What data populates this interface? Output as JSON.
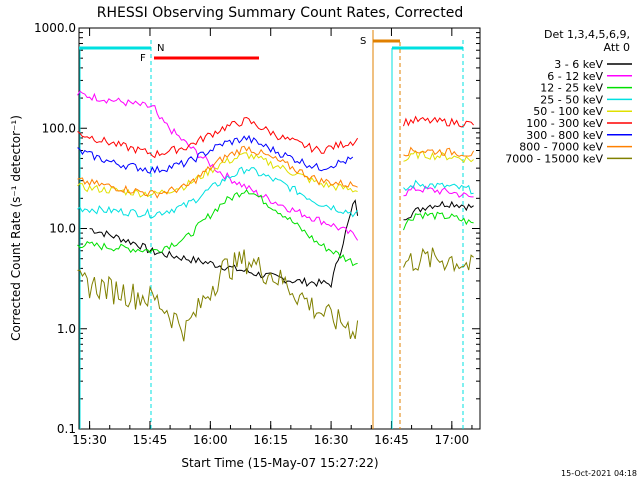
{
  "chart_data": {
    "type": "line",
    "title": "RHESSI Observing Summary Count Rates, Corrected",
    "xlabel": "Start Time (15-May-07 15:27:22)",
    "ylabel": "Corrected Count Rate (s⁻¹ detector⁻¹)",
    "yscale": "log",
    "ylim": [
      0.1,
      1000
    ],
    "xlim_minutes": [
      "15:27:22",
      "17:07"
    ],
    "x_ticks": [
      "15:30",
      "15:45",
      "16:00",
      "16:15",
      "16:30",
      "16:45",
      "17:00"
    ],
    "y_ticks": [
      "0.1",
      "1.0",
      "10.0",
      "100.0",
      "1000.0"
    ],
    "footer_date": "15-Oct-2021 04:18",
    "legend": {
      "header1": "Det 1,3,4,5,6,9,",
      "header2": "Att 0",
      "placement": "top-right-outside"
    },
    "flags": [
      {
        "label": "N",
        "color": "#00e0e0"
      },
      {
        "label": "F",
        "color": "#ff0000"
      },
      {
        "label": "S",
        "color": "#e08000"
      }
    ],
    "series": [
      {
        "name": "3 - 6 keV",
        "color": "#000000",
        "x": [
          15.5,
          15.7,
          15.75,
          15.77,
          16.0,
          16.2,
          16.35,
          16.5,
          16.6,
          16.62,
          16.7,
          16.8,
          16.9,
          17.0,
          17.1
        ],
        "y": [
          10,
          7,
          6,
          5.8,
          4.5,
          3.5,
          3,
          2.8,
          20,
          8,
          8,
          13,
          17,
          18,
          16
        ]
      },
      {
        "name": "6 - 12 keV",
        "color": "#ff00ff",
        "x": [
          15.45,
          15.77,
          15.78,
          15.9,
          16.05,
          16.2,
          16.35,
          16.5,
          16.62,
          16.75,
          16.85,
          17.0,
          17.1
        ],
        "y": [
          220,
          160,
          130,
          70,
          35,
          22,
          15,
          11,
          8,
          20,
          25,
          23,
          20
        ]
      },
      {
        "name": "12 - 25 keV",
        "color": "#00e000",
        "x": [
          15.45,
          15.6,
          15.77,
          15.9,
          16.05,
          16.15,
          16.3,
          16.45,
          16.6,
          16.75,
          16.85,
          17.0,
          17.1
        ],
        "y": [
          7,
          6.5,
          6,
          8,
          18,
          25,
          14,
          7,
          4.5,
          8,
          14,
          13,
          11
        ]
      },
      {
        "name": "25 - 50 keV",
        "color": "#00e0e0",
        "x": [
          15.45,
          15.6,
          15.77,
          15.9,
          16.05,
          16.15,
          16.3,
          16.45,
          16.6,
          16.75,
          16.85,
          17.0,
          17.1
        ],
        "y": [
          16,
          15,
          14,
          17,
          30,
          40,
          28,
          18,
          14,
          20,
          28,
          26,
          24
        ]
      },
      {
        "name": "50 - 100 keV",
        "color": "#e0e000",
        "x": [
          15.45,
          15.6,
          15.77,
          15.9,
          16.05,
          16.15,
          16.3,
          16.45,
          16.6,
          16.75,
          16.85,
          17.0,
          17.1
        ],
        "y": [
          26,
          24,
          22,
          27,
          45,
          55,
          40,
          28,
          24,
          40,
          55,
          52,
          48
        ]
      },
      {
        "name": "100 - 300 keV",
        "color": "#ff0000",
        "x": [
          15.45,
          15.6,
          15.77,
          15.9,
          16.05,
          16.15,
          16.3,
          16.45,
          16.6,
          16.75,
          16.85,
          17.0,
          17.1
        ],
        "y": [
          90,
          70,
          55,
          65,
          100,
          120,
          80,
          60,
          75,
          110,
          120,
          115,
          110
        ]
      },
      {
        "name": "300 - 800 keV",
        "color": "#0000ff",
        "x": [
          15.45,
          15.6,
          15.77,
          15.9,
          16.05,
          16.15,
          16.3,
          16.45,
          16.6
        ],
        "y": [
          60,
          45,
          38,
          45,
          70,
          80,
          55,
          40,
          50
        ]
      },
      {
        "name": "800 - 7000 keV",
        "color": "#ff8000",
        "x": [
          15.45,
          15.6,
          15.77,
          15.9,
          16.05,
          16.15,
          16.3,
          16.45,
          16.6,
          16.75,
          16.85,
          17.0,
          17.1
        ],
        "y": [
          30,
          26,
          22,
          26,
          50,
          65,
          45,
          30,
          27,
          55,
          60,
          58,
          55
        ]
      },
      {
        "name": "7000 - 15000 keV",
        "color": "#808000",
        "x": [
          15.45,
          15.6,
          15.77,
          15.9,
          16.05,
          16.15,
          16.3,
          16.45,
          16.6,
          16.75,
          16.85,
          17.0,
          17.1
        ],
        "y": [
          3,
          2.5,
          2,
          1,
          4,
          5,
          3,
          1.5,
          1,
          4,
          5,
          5,
          4
        ]
      }
    ]
  }
}
